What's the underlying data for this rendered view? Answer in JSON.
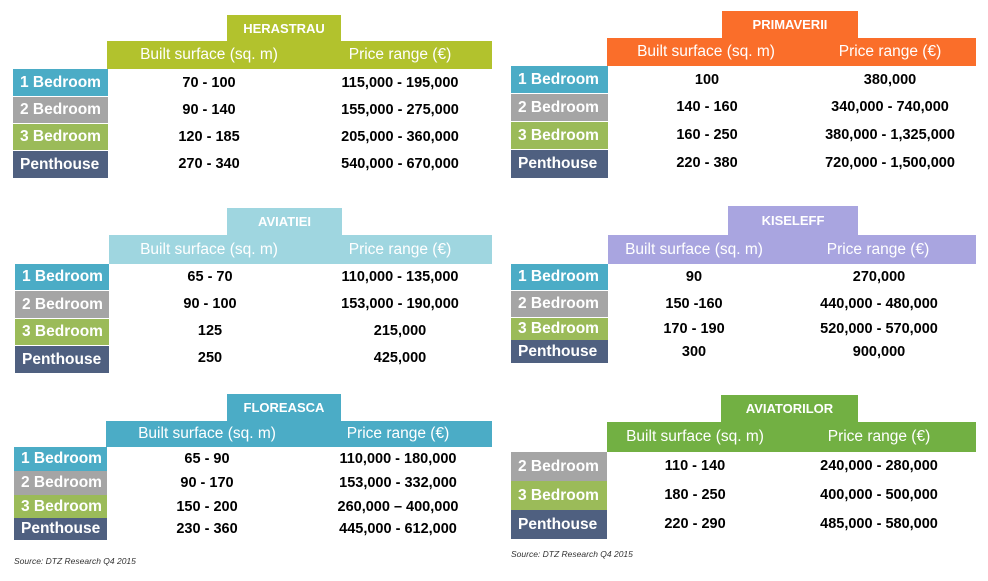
{
  "colors": {
    "bedroom1": "#4bacc6",
    "bedroom2": "#a5a5a5",
    "bedroom3": "#9bbb59",
    "penthouse": "#4f6080",
    "herastrau": "#b2c22d",
    "primaverii": "#fa6e2a",
    "aviatiei": "#9fd6e0",
    "kiseleff": "#a9a5e0",
    "floreasca": "#4bacc6",
    "aviatorilor": "#72b043"
  },
  "tables": [
    {
      "title": "HERASTRAU",
      "headers": [
        "Built surface (sq. m)",
        "Price range (€)"
      ],
      "rows": [
        {
          "label": "1 Bedroom",
          "surface": "70 - 100",
          "price": "115,000 - 195,000"
        },
        {
          "label": "2 Bedroom",
          "surface": "90 - 140",
          "price": "155,000 - 275,000"
        },
        {
          "label": "3 Bedroom",
          "surface": "120 - 185",
          "price": "205,000 - 360,000"
        },
        {
          "label": "Penthouse",
          "surface": "270 - 340",
          "price": "540,000 - 670,000"
        }
      ]
    },
    {
      "title": "PRIMAVERII",
      "headers": [
        "Built surface (sq. m)",
        "Price range (€)"
      ],
      "rows": [
        {
          "label": "1 Bedroom",
          "surface": "100",
          "price": "380,000"
        },
        {
          "label": "2 Bedroom",
          "surface": "140 - 160",
          "price": "340,000 - 740,000"
        },
        {
          "label": "3 Bedroom",
          "surface": "160 - 250",
          "price": "380,000 - 1,325,000"
        },
        {
          "label": "Penthouse",
          "surface": "220 - 380",
          "price": "720,000 - 1,500,000"
        }
      ]
    },
    {
      "title": "AVIATIEI",
      "headers": [
        "Built surface (sq. m)",
        "Price range (€)"
      ],
      "rows": [
        {
          "label": "1 Bedroom",
          "surface": "65 - 70",
          "price": "110,000 - 135,000"
        },
        {
          "label": "2 Bedroom",
          "surface": "90 - 100",
          "price": "153,000 - 190,000"
        },
        {
          "label": "3 Bedroom",
          "surface": "125",
          "price": "215,000"
        },
        {
          "label": "Penthouse",
          "surface": "250",
          "price": "425,000"
        }
      ]
    },
    {
      "title": "KISELEFF",
      "headers": [
        "Built surface (sq. m)",
        "Price range (€)"
      ],
      "rows": [
        {
          "label": "1 Bedroom",
          "surface": "90",
          "price": "270,000"
        },
        {
          "label": "2 Bedroom",
          "surface": "150 -160",
          "price": "440,000 - 480,000"
        },
        {
          "label": "3 Bedroom",
          "surface": "170 - 190",
          "price": "520,000 - 570,000"
        },
        {
          "label": "Penthouse",
          "surface": "300",
          "price": "900,000"
        }
      ]
    },
    {
      "title": "FLOREASCA",
      "headers": [
        "Built surface (sq. m)",
        "Price range (€)"
      ],
      "rows": [
        {
          "label": "1 Bedroom",
          "surface": "65 - 90",
          "price": "110,000 - 180,000"
        },
        {
          "label": "2 Bedroom",
          "surface": "90 - 170",
          "price": "153,000 - 332,000"
        },
        {
          "label": "3 Bedroom",
          "surface": "150 - 200",
          "price": "260,000 – 400,000"
        },
        {
          "label": "Penthouse",
          "surface": "230 - 360",
          "price": "445,000 - 612,000"
        }
      ]
    },
    {
      "title": "AVIATORILOR",
      "headers": [
        "Built surface (sq. m)",
        "Price range (€)"
      ],
      "rows": [
        {
          "label": "2 Bedroom",
          "surface": "110 - 140",
          "price": "240,000 - 280,000"
        },
        {
          "label": "3 Bedroom",
          "surface": "180 - 250",
          "price": "400,000 - 500,000"
        },
        {
          "label": "Penthouse",
          "surface": "220 - 290",
          "price": "485,000 - 580,000"
        }
      ]
    }
  ],
  "sources": {
    "left": "Source: DTZ Research Q4 2015",
    "right": "Source: DTZ Research Q4 2015"
  }
}
